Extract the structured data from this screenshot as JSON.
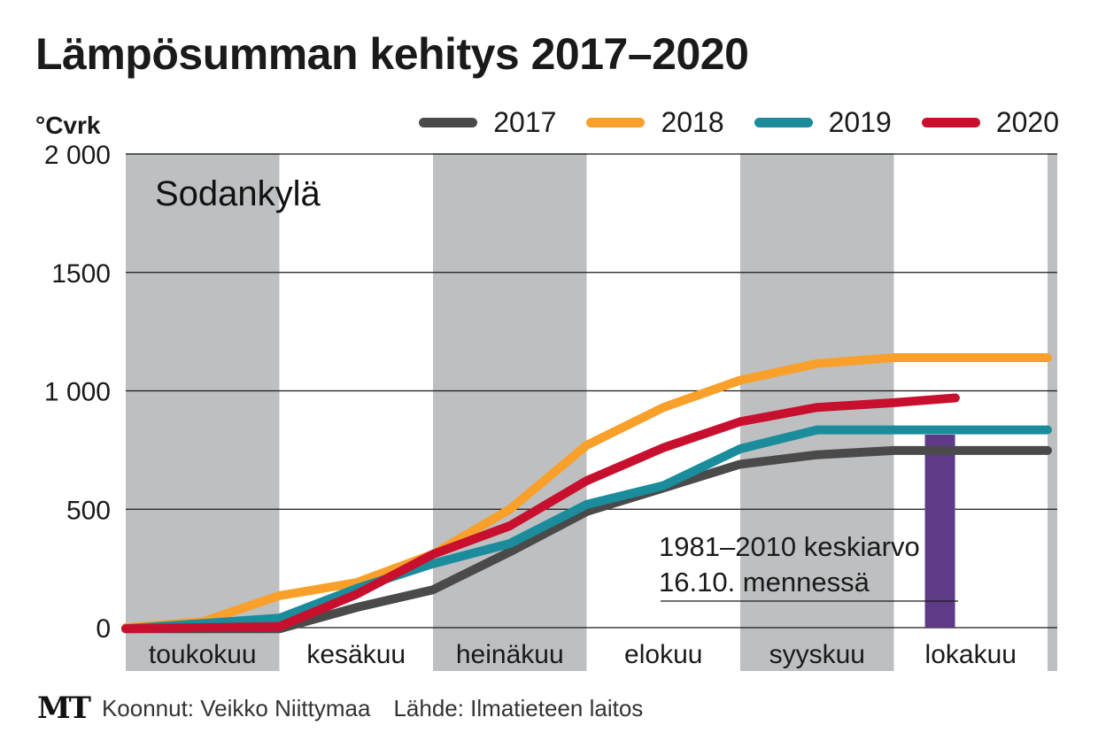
{
  "header": {
    "title": "Lämpösumman kehitys 2017–2020",
    "unit": "°Cvrk"
  },
  "footer": {
    "logo": "MT",
    "credit": "Koonnut: Veikko Niittymaa",
    "source": "Lähde: Ilmatieteen laitos"
  },
  "chart_data": {
    "type": "line",
    "location_label": "Sodankylä",
    "ylim": [
      0,
      2000
    ],
    "y_ticks": [
      {
        "value": 0,
        "label": "0"
      },
      {
        "value": 500,
        "label": "500"
      },
      {
        "value": 1000,
        "label": "1 000"
      },
      {
        "value": 1500,
        "label": "1500"
      },
      {
        "value": 2000,
        "label": "2 000"
      }
    ],
    "months": [
      "toukokuu",
      "kesäkuu",
      "heinäkuu",
      "elokuu",
      "syyskuu",
      "lokakuu"
    ],
    "grid": true,
    "legend_position": "top-right",
    "series": [
      {
        "name": "2017",
        "color": "#4a4a4a",
        "points": [
          [
            0,
            -5
          ],
          [
            1,
            -5
          ],
          [
            1.5,
            85
          ],
          [
            2,
            160
          ],
          [
            2.5,
            320
          ],
          [
            3,
            490
          ],
          [
            3.5,
            590
          ],
          [
            4,
            690
          ],
          [
            4.5,
            730
          ],
          [
            5,
            748
          ],
          [
            5.5,
            748
          ],
          [
            6,
            748
          ]
        ]
      },
      {
        "name": "2018",
        "color": "#f9a02b",
        "points": [
          [
            0,
            0
          ],
          [
            0.5,
            25
          ],
          [
            1,
            135
          ],
          [
            1.5,
            190
          ],
          [
            2,
            310
          ],
          [
            2.5,
            500
          ],
          [
            3,
            770
          ],
          [
            3.5,
            930
          ],
          [
            4,
            1045
          ],
          [
            4.5,
            1115
          ],
          [
            5,
            1140
          ],
          [
            5.5,
            1140
          ],
          [
            6,
            1140
          ]
        ]
      },
      {
        "name": "2019",
        "color": "#1a8c9c",
        "points": [
          [
            0,
            -5
          ],
          [
            1,
            40
          ],
          [
            1.5,
            165
          ],
          [
            2,
            270
          ],
          [
            2.5,
            355
          ],
          [
            3,
            520
          ],
          [
            3.5,
            600
          ],
          [
            4,
            755
          ],
          [
            4.5,
            835
          ],
          [
            5,
            835
          ],
          [
            5.5,
            835
          ],
          [
            6,
            835
          ]
        ]
      },
      {
        "name": "2020",
        "color": "#c8102e",
        "points": [
          [
            0,
            -5
          ],
          [
            1,
            5
          ],
          [
            1.5,
            140
          ],
          [
            2,
            310
          ],
          [
            2.5,
            430
          ],
          [
            3,
            620
          ],
          [
            3.5,
            760
          ],
          [
            4,
            870
          ],
          [
            4.5,
            930
          ],
          [
            5,
            950
          ],
          [
            5.4,
            970
          ]
        ]
      }
    ],
    "reference": {
      "label_line1": "1981–2010 keskiarvo",
      "label_line2": "16.10. mennessä",
      "x": 5.3,
      "value": 815,
      "color": "#5e3a87"
    }
  }
}
